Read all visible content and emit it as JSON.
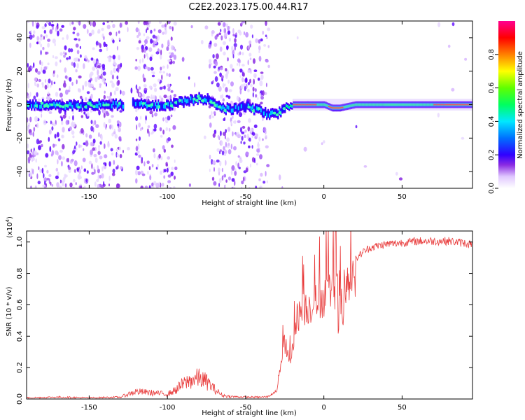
{
  "title": "C2E2.2023.175.00.44.R17",
  "chart_data": [
    {
      "type": "heatmap",
      "xlabel": "Height of straight line (km)",
      "ylabel": "Frequency (Hz)",
      "xlim": [
        -190,
        95
      ],
      "ylim": [
        -50,
        50
      ],
      "x_ticks": [
        -150,
        -100,
        -50,
        0,
        50
      ],
      "y_ticks": [
        -40,
        -20,
        0,
        20,
        40
      ],
      "colorbar": {
        "label": "Normalized spectral amplitude",
        "range": [
          0,
          1
        ],
        "ticks": [
          "0.0",
          "0.2",
          "0.4",
          "0.6",
          "0.8"
        ]
      },
      "ridge": {
        "x": [
          -185,
          -170,
          -150,
          -135,
          -128,
          -120,
          -110,
          -100,
          -95,
          -88,
          -80,
          -75,
          -70,
          -65,
          -60,
          -55,
          -50,
          -40,
          -35,
          -30,
          -25,
          -20,
          -10,
          0,
          5,
          10,
          20,
          40,
          60,
          80,
          95
        ],
        "freq_hz": [
          0,
          -1,
          0,
          0,
          0,
          1,
          -1,
          0,
          1,
          2,
          4,
          3,
          1,
          -2,
          -3,
          -2,
          -1,
          -4,
          -6,
          -5,
          -2,
          0,
          0,
          0,
          -2,
          -2,
          0,
          0,
          0,
          0,
          0
        ]
      },
      "scatter_zones": [
        [
          -190,
          -128
        ],
        [
          -120,
          -95
        ],
        [
          -73,
          -60
        ],
        [
          -60,
          -35
        ]
      ]
    },
    {
      "type": "line",
      "xlabel": "Height of straight line (km)",
      "ylabel": "SNR (10 * v/v)",
      "y_exponent_label": "(x10",
      "y_exponent_power": "4",
      "xlim": [
        -190,
        95
      ],
      "ylim": [
        0,
        1.07
      ],
      "x_ticks": [
        -150,
        -100,
        -50,
        0,
        50
      ],
      "y_ticks": [
        0.0,
        0.2,
        0.4,
        0.6,
        0.8,
        1.0
      ],
      "color": "#e83a3a",
      "envelope": {
        "x": [
          -190,
          -170,
          -150,
          -130,
          -125,
          -120,
          -110,
          -100,
          -95,
          -90,
          -85,
          -80,
          -75,
          -70,
          -65,
          -60,
          -50,
          -40,
          -35,
          -30,
          -27,
          -25,
          -22,
          -20,
          -18,
          -15,
          -10,
          -5,
          0,
          5,
          10,
          12,
          15,
          20,
          25,
          30,
          40,
          60,
          80,
          95
        ],
        "y": [
          0.01,
          0.015,
          0.01,
          0.015,
          0.04,
          0.06,
          0.05,
          0.04,
          0.07,
          0.12,
          0.15,
          0.17,
          0.14,
          0.08,
          0.03,
          0.02,
          0.015,
          0.015,
          0.02,
          0.06,
          0.3,
          0.4,
          0.25,
          0.35,
          0.55,
          0.62,
          0.65,
          0.68,
          0.72,
          0.78,
          0.8,
          0.6,
          0.85,
          0.9,
          0.95,
          0.98,
          1.0,
          1.02,
          1.02,
          1.0
        ]
      }
    }
  ]
}
